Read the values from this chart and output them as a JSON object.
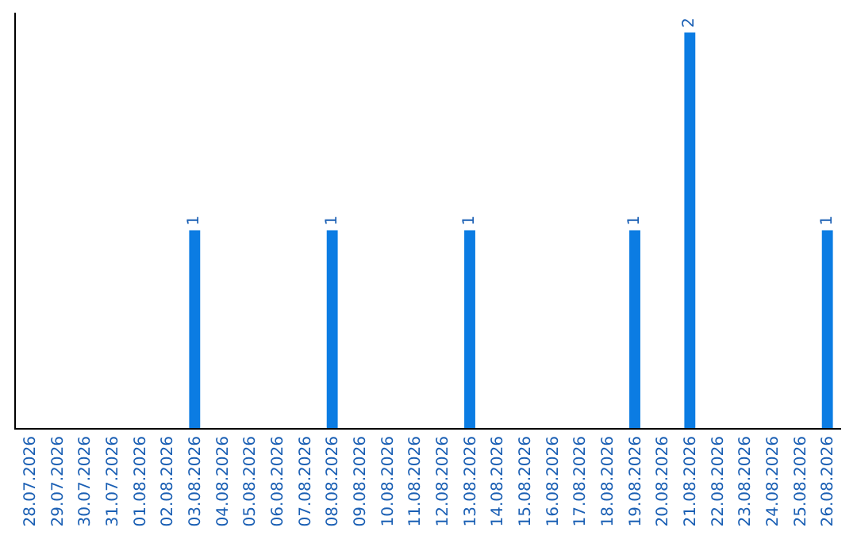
{
  "chart_data": {
    "type": "bar",
    "categories": [
      "28.07.2026",
      "29.07.2026",
      "30.07.2026",
      "31.07.2026",
      "01.08.2026",
      "02.08.2026",
      "03.08.2026",
      "04.08.2026",
      "05.08.2026",
      "06.08.2026",
      "07.08.2026",
      "08.08.2026",
      "09.08.2026",
      "10.08.2026",
      "11.08.2026",
      "12.08.2026",
      "13.08.2026",
      "14.08.2026",
      "15.08.2026",
      "16.08.2026",
      "17.08.2026",
      "18.08.2026",
      "19.08.2026",
      "20.08.2026",
      "21.08.2026",
      "22.08.2026",
      "23.08.2026",
      "24.08.2026",
      "25.08.2026",
      "26.08.2026"
    ],
    "values": [
      0,
      0,
      0,
      0,
      0,
      0,
      1,
      0,
      0,
      0,
      0,
      1,
      0,
      0,
      0,
      0,
      1,
      0,
      0,
      0,
      0,
      0,
      1,
      0,
      2,
      0,
      0,
      0,
      0,
      1
    ],
    "value_labels": [
      null,
      null,
      null,
      null,
      null,
      null,
      "1",
      null,
      null,
      null,
      null,
      "1",
      null,
      null,
      null,
      null,
      "1",
      null,
      null,
      null,
      null,
      null,
      "1",
      null,
      "2",
      null,
      null,
      null,
      null,
      "1"
    ],
    "color": "#0b7ce3",
    "legend": false,
    "tick_labels": "x"
  }
}
